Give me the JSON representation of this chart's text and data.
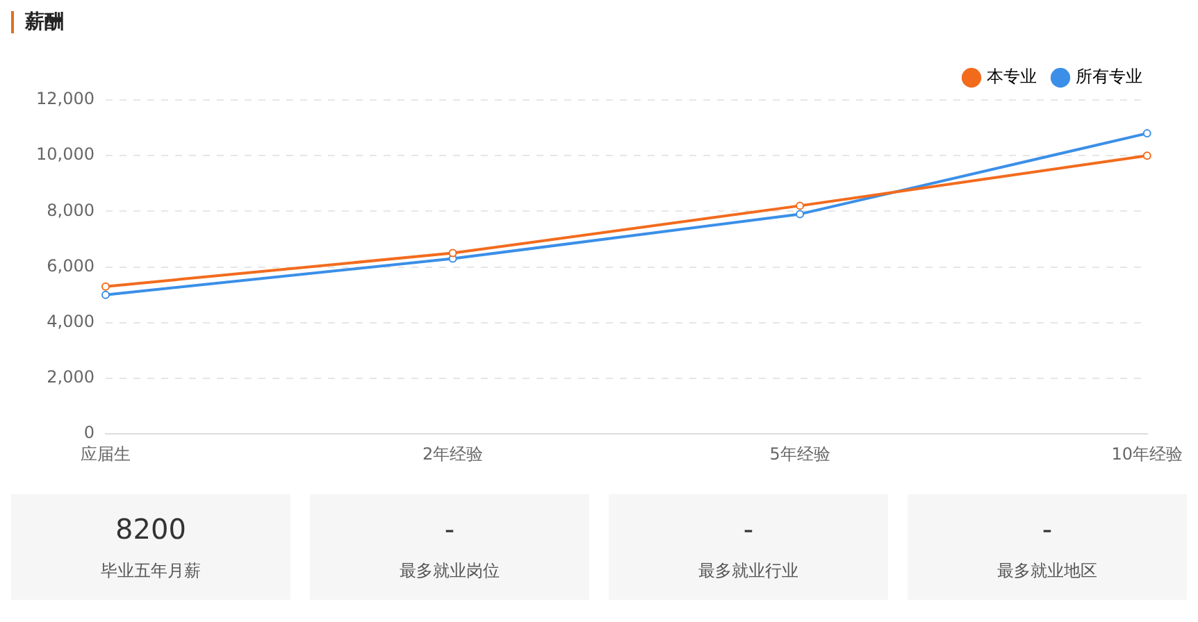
{
  "chart_data": [
    {
      "type": "line",
      "title": "薪酬",
      "categories": [
        "应届生",
        "2年经验",
        "5年经验",
        "10年经验"
      ],
      "series": [
        {
          "name": "本专业",
          "color": "#f26b1d",
          "values": [
            5300,
            6500,
            8200,
            10000
          ]
        },
        {
          "name": "所有专业",
          "color": "#3b8fe8",
          "values": [
            5000,
            6300,
            7900,
            10800
          ]
        }
      ],
      "ylim": [
        0,
        12000
      ],
      "yticks": [
        {
          "value": 0,
          "label": "0"
        },
        {
          "value": 2000,
          "label": "2,000"
        },
        {
          "value": 4000,
          "label": "4,000"
        },
        {
          "value": 6000,
          "label": "6,000"
        },
        {
          "value": 8000,
          "label": "8,000"
        },
        {
          "value": 10000,
          "label": "10,000"
        },
        {
          "value": 12000,
          "label": "12,000"
        }
      ],
      "grid": "y",
      "legend": "top right",
      "marker": "circle",
      "line_style": "solid"
    },
    {
      "type": "other",
      "annotations": [
        "8200",
        "毕业五年月薪",
        "-",
        "最多就业岗位",
        "-",
        "最多就业行业",
        "-",
        "最多就业地区"
      ]
    }
  ]
}
